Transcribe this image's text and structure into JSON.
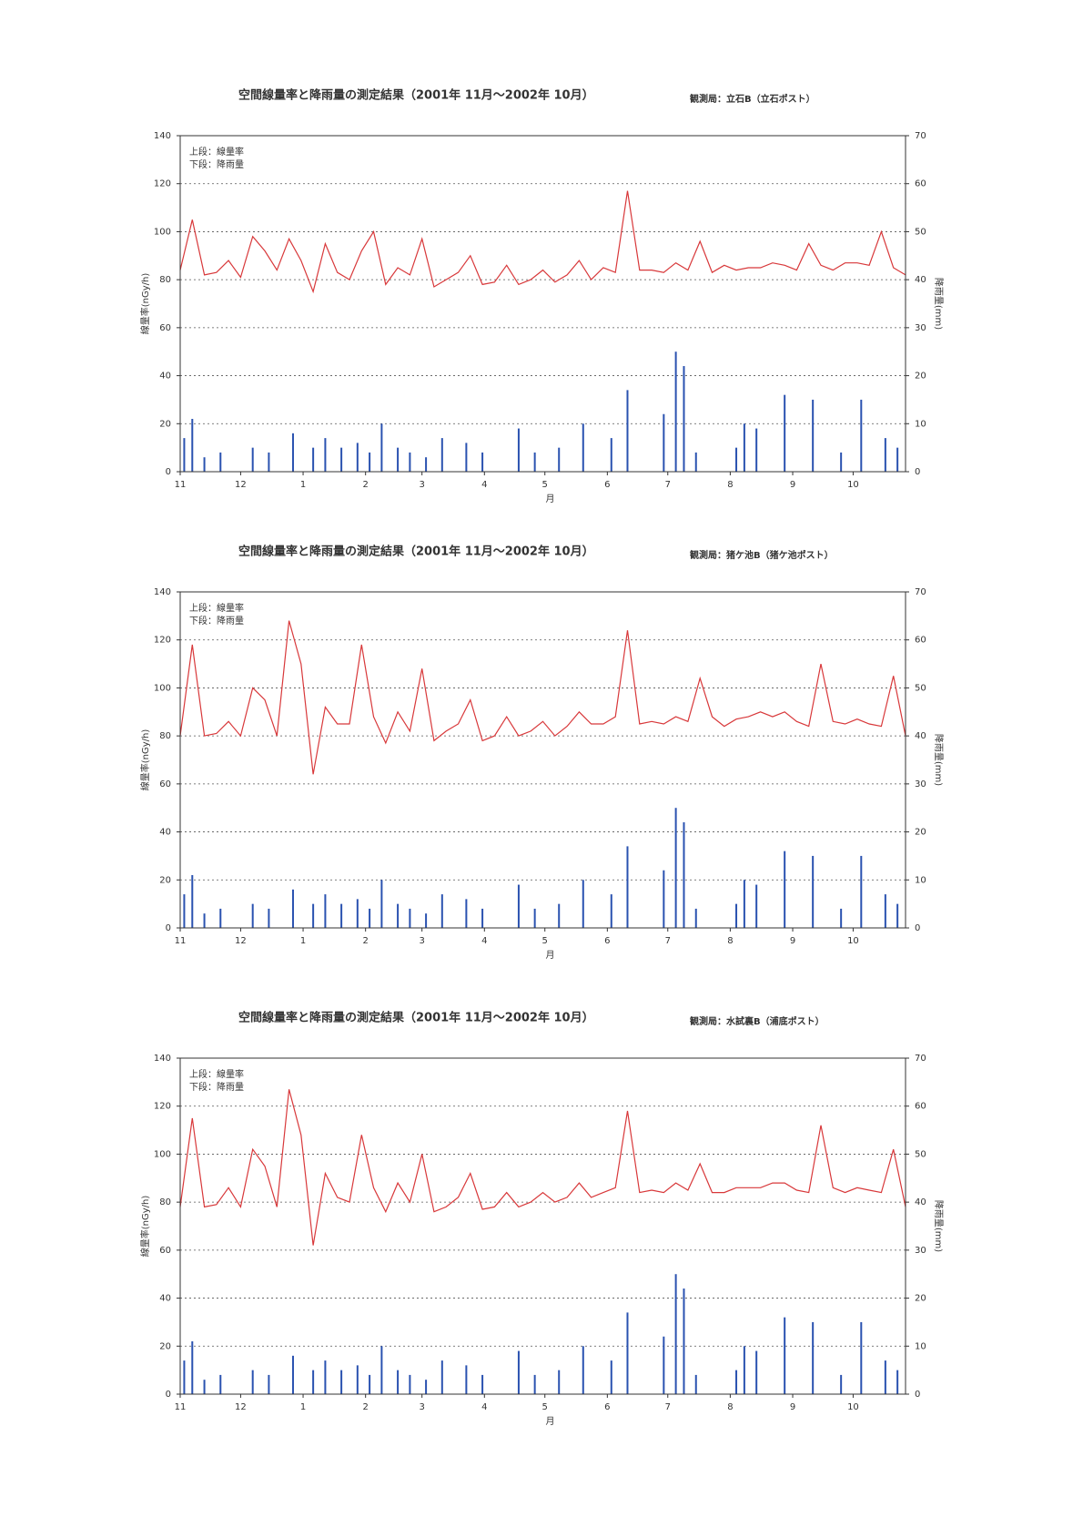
{
  "charts": [
    {
      "chart_data": {
        "type": "line",
        "title": "空間線量率と降雨量の測定結果（2001年 11月～2002年 10月）",
        "station": "観測局：立石B（立石ポスト）",
        "x_label": "月",
        "y_label": "線量率(nGy/h)",
        "y2_label": "降雨量(mm)",
        "xlim": [
          0,
          360
        ],
        "xticks": [
          {
            "value": 0,
            "label": "11"
          },
          {
            "value": 30,
            "label": "12"
          },
          {
            "value": 61,
            "label": "1"
          },
          {
            "value": 92,
            "label": "2"
          },
          {
            "value": 120,
            "label": "3"
          },
          {
            "value": 151,
            "label": "4"
          },
          {
            "value": 181,
            "label": "5"
          },
          {
            "value": 212,
            "label": "6"
          },
          {
            "value": 242,
            "label": "7"
          },
          {
            "value": 273,
            "label": "8"
          },
          {
            "value": 304,
            "label": "9"
          },
          {
            "value": 334,
            "label": "10"
          }
        ],
        "ylim": [
          0,
          140
        ],
        "yticks": [
          0,
          20,
          40,
          60,
          80,
          100,
          120,
          140
        ],
        "y2lim": [
          0,
          70
        ],
        "y2ticks": [
          0,
          10,
          20,
          30,
          40,
          50,
          60,
          70
        ],
        "grid": true,
        "series": [
          {
            "name": "上段：線量率",
            "type": "line",
            "color": "#d8383a",
            "x": [
              0,
              6,
              12,
              18,
              24,
              30,
              36,
              42,
              48,
              54,
              60,
              66,
              72,
              78,
              84,
              90,
              96,
              102,
              108,
              114,
              120,
              126,
              132,
              138,
              144,
              150,
              156,
              162,
              168,
              174,
              180,
              186,
              192,
              198,
              204,
              210,
              216,
              222,
              228,
              234,
              240,
              246,
              252,
              258,
              264,
              270,
              276,
              282,
              288,
              294,
              300,
              306,
              312,
              318,
              324,
              330,
              336,
              342,
              348,
              354,
              360
            ],
            "values": [
              84,
              105,
              82,
              83,
              88,
              81,
              98,
              92,
              84,
              97,
              88,
              75,
              95,
              83,
              80,
              92,
              100,
              78,
              85,
              82,
              97,
              77,
              80,
              83,
              90,
              78,
              79,
              86,
              78,
              80,
              84,
              79,
              82,
              88,
              80,
              85,
              83,
              117,
              84,
              84,
              83,
              87,
              84,
              96,
              83,
              86,
              84,
              85,
              85,
              87,
              86,
              84,
              95,
              86,
              84,
              87,
              87,
              86,
              100,
              85,
              82
            ]
          },
          {
            "name": "下段：降雨量",
            "type": "bar",
            "axis": "y2",
            "color": "#2a52b0",
            "x": [
              2,
              6,
              12,
              20,
              36,
              44,
              56,
              66,
              72,
              80,
              88,
              94,
              100,
              108,
              114,
              122,
              130,
              142,
              150,
              168,
              176,
              188,
              200,
              214,
              222,
              240,
              246,
              250,
              256,
              276,
              280,
              286,
              300,
              314,
              328,
              338,
              350,
              356
            ],
            "values": [
              7,
              11,
              3,
              4,
              5,
              4,
              8,
              5,
              7,
              5,
              6,
              4,
              10,
              5,
              4,
              3,
              7,
              6,
              4,
              9,
              4,
              5,
              10,
              7,
              17,
              12,
              25,
              22,
              4,
              5,
              10,
              9,
              16,
              15,
              4,
              15,
              7,
              5
            ]
          }
        ]
      }
    },
    {
      "chart_data": {
        "type": "line",
        "title": "空間線量率と降雨量の測定結果（2001年 11月～2002年 10月）",
        "station": "観測局：猪ケ池B（猪ケ池ポスト）",
        "x_label": "月",
        "y_label": "線量率(nGy/h)",
        "y2_label": "降雨量(mm)",
        "xlim": [
          0,
          360
        ],
        "xticks": [
          {
            "value": 0,
            "label": "11"
          },
          {
            "value": 30,
            "label": "12"
          },
          {
            "value": 61,
            "label": "1"
          },
          {
            "value": 92,
            "label": "2"
          },
          {
            "value": 120,
            "label": "3"
          },
          {
            "value": 151,
            "label": "4"
          },
          {
            "value": 181,
            "label": "5"
          },
          {
            "value": 212,
            "label": "6"
          },
          {
            "value": 242,
            "label": "7"
          },
          {
            "value": 273,
            "label": "8"
          },
          {
            "value": 304,
            "label": "9"
          },
          {
            "value": 334,
            "label": "10"
          }
        ],
        "ylim": [
          0,
          140
        ],
        "yticks": [
          0,
          20,
          40,
          60,
          80,
          100,
          120,
          140
        ],
        "y2lim": [
          0,
          70
        ],
        "y2ticks": [
          0,
          10,
          20,
          30,
          40,
          50,
          60,
          70
        ],
        "grid": true,
        "series": [
          {
            "name": "上段：線量率",
            "type": "line",
            "color": "#d8383a",
            "x": [
              0,
              6,
              12,
              18,
              24,
              30,
              36,
              42,
              48,
              54,
              60,
              66,
              72,
              78,
              84,
              90,
              96,
              102,
              108,
              114,
              120,
              126,
              132,
              138,
              144,
              150,
              156,
              162,
              168,
              174,
              180,
              186,
              192,
              198,
              204,
              210,
              216,
              222,
              228,
              234,
              240,
              246,
              252,
              258,
              264,
              270,
              276,
              282,
              288,
              294,
              300,
              306,
              312,
              318,
              324,
              330,
              336,
              342,
              348,
              354,
              360
            ],
            "values": [
              80,
              118,
              80,
              81,
              86,
              80,
              100,
              95,
              80,
              128,
              110,
              64,
              92,
              85,
              85,
              118,
              88,
              77,
              90,
              82,
              108,
              78,
              82,
              85,
              95,
              78,
              80,
              88,
              80,
              82,
              86,
              80,
              84,
              90,
              85,
              85,
              88,
              124,
              85,
              86,
              85,
              88,
              86,
              104,
              88,
              84,
              87,
              88,
              90,
              88,
              90,
              86,
              84,
              110,
              86,
              85,
              87,
              85,
              84,
              105,
              80
            ]
          },
          {
            "name": "下段：降雨量",
            "type": "bar",
            "axis": "y2",
            "color": "#2a52b0",
            "x": [
              2,
              6,
              12,
              20,
              36,
              44,
              56,
              66,
              72,
              80,
              88,
              94,
              100,
              108,
              114,
              122,
              130,
              142,
              150,
              168,
              176,
              188,
              200,
              214,
              222,
              240,
              246,
              250,
              256,
              276,
              280,
              286,
              300,
              314,
              328,
              338,
              350,
              356
            ],
            "values": [
              7,
              11,
              3,
              4,
              5,
              4,
              8,
              5,
              7,
              5,
              6,
              4,
              10,
              5,
              4,
              3,
              7,
              6,
              4,
              9,
              4,
              5,
              10,
              7,
              17,
              12,
              25,
              22,
              4,
              5,
              10,
              9,
              16,
              15,
              4,
              15,
              7,
              5
            ]
          }
        ]
      }
    },
    {
      "chart_data": {
        "type": "line",
        "title": "空間線量率と降雨量の測定結果（2001年 11月～2002年 10月）",
        "station": "観測局：水試裏B（浦底ポスト）",
        "x_label": "月",
        "y_label": "線量率(nGy/h)",
        "y2_label": "降雨量(mm)",
        "xlim": [
          0,
          360
        ],
        "xticks": [
          {
            "value": 0,
            "label": "11"
          },
          {
            "value": 30,
            "label": "12"
          },
          {
            "value": 61,
            "label": "1"
          },
          {
            "value": 92,
            "label": "2"
          },
          {
            "value": 120,
            "label": "3"
          },
          {
            "value": 151,
            "label": "4"
          },
          {
            "value": 181,
            "label": "5"
          },
          {
            "value": 212,
            "label": "6"
          },
          {
            "value": 242,
            "label": "7"
          },
          {
            "value": 273,
            "label": "8"
          },
          {
            "value": 304,
            "label": "9"
          },
          {
            "value": 334,
            "label": "10"
          }
        ],
        "ylim": [
          0,
          140
        ],
        "yticks": [
          0,
          20,
          40,
          60,
          80,
          100,
          120,
          140
        ],
        "y2lim": [
          0,
          70
        ],
        "y2ticks": [
          0,
          10,
          20,
          30,
          40,
          50,
          60,
          70
        ],
        "grid": true,
        "series": [
          {
            "name": "上段：線量率",
            "type": "line",
            "color": "#d8383a",
            "x": [
              0,
              6,
              12,
              18,
              24,
              30,
              36,
              42,
              48,
              54,
              60,
              66,
              72,
              78,
              84,
              90,
              96,
              102,
              108,
              114,
              120,
              126,
              132,
              138,
              144,
              150,
              156,
              162,
              168,
              174,
              180,
              186,
              192,
              198,
              204,
              210,
              216,
              222,
              228,
              234,
              240,
              246,
              252,
              258,
              264,
              270,
              276,
              282,
              288,
              294,
              300,
              306,
              312,
              318,
              324,
              330,
              336,
              342,
              348,
              354,
              360
            ],
            "values": [
              78,
              115,
              78,
              79,
              86,
              78,
              102,
              95,
              78,
              127,
              108,
              62,
              92,
              82,
              80,
              108,
              86,
              76,
              88,
              80,
              100,
              76,
              78,
              82,
              92,
              77,
              78,
              84,
              78,
              80,
              84,
              80,
              82,
              88,
              82,
              84,
              86,
              118,
              84,
              85,
              84,
              88,
              85,
              96,
              84,
              84,
              86,
              86,
              86,
              88,
              88,
              85,
              84,
              112,
              86,
              84,
              86,
              85,
              84,
              102,
              78
            ]
          },
          {
            "name": "下段：降雨量",
            "type": "bar",
            "axis": "y2",
            "color": "#2a52b0",
            "x": [
              2,
              6,
              12,
              20,
              36,
              44,
              56,
              66,
              72,
              80,
              88,
              94,
              100,
              108,
              114,
              122,
              130,
              142,
              150,
              168,
              176,
              188,
              200,
              214,
              222,
              240,
              246,
              250,
              256,
              276,
              280,
              286,
              300,
              314,
              328,
              338,
              350,
              356
            ],
            "values": [
              7,
              11,
              3,
              4,
              5,
              4,
              8,
              5,
              7,
              5,
              6,
              4,
              10,
              5,
              4,
              3,
              7,
              6,
              4,
              9,
              4,
              5,
              10,
              7,
              17,
              12,
              25,
              22,
              4,
              5,
              10,
              9,
              16,
              15,
              4,
              15,
              7,
              5
            ]
          }
        ]
      }
    }
  ]
}
